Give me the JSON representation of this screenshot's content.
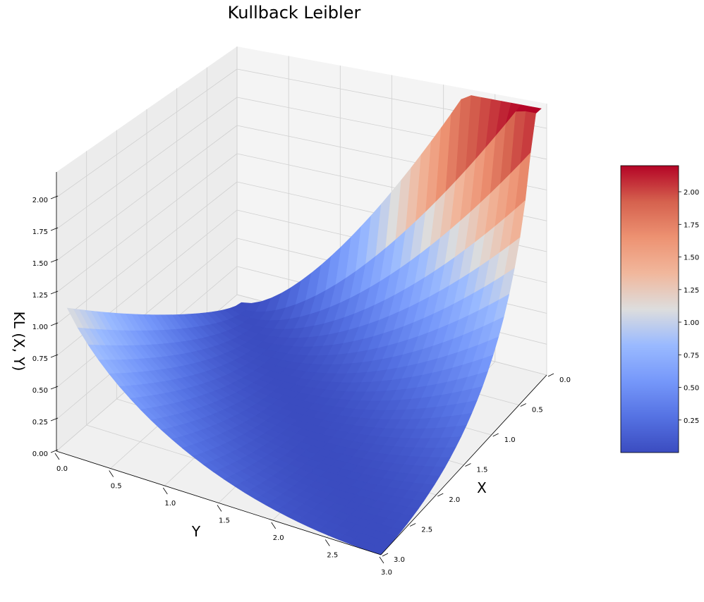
{
  "chart_data": {
    "type": "surface3d",
    "title": "Kullback Leibler",
    "xlabel": "X",
    "ylabel": "Y",
    "zlabel": "KL (X, Y)",
    "x_ticks": [
      "0.0",
      "0.5",
      "1.0",
      "1.5",
      "2.0",
      "2.5",
      "3.0"
    ],
    "y_ticks": [
      "0.0",
      "0.5",
      "1.0",
      "1.5",
      "2.0",
      "2.5",
      "3.0"
    ],
    "z_ticks": [
      "0.00",
      "0.25",
      "0.50",
      "0.75",
      "1.00",
      "1.25",
      "1.50",
      "1.75",
      "2.00"
    ],
    "xlim": [
      0,
      3
    ],
    "ylim": [
      0,
      3
    ],
    "zlim": [
      0,
      2.2
    ],
    "surface": {
      "x_range": [
        0.1,
        3.0
      ],
      "y_range": [
        0.1,
        3.0
      ],
      "z_min": 0.0,
      "z_max": 2.2
    },
    "colorbar": {
      "colormap": "coolwarm",
      "range": [
        0.0,
        2.2
      ],
      "ticks": [
        "0.25",
        "0.50",
        "0.75",
        "1.00",
        "1.25",
        "1.50",
        "1.75",
        "2.00"
      ]
    },
    "colors": {
      "cool": "#3b4cc0",
      "neutral": "#dddddd",
      "warm": "#b40426",
      "pane": "#f2f2f2",
      "grid": "#d0d0d0"
    }
  }
}
